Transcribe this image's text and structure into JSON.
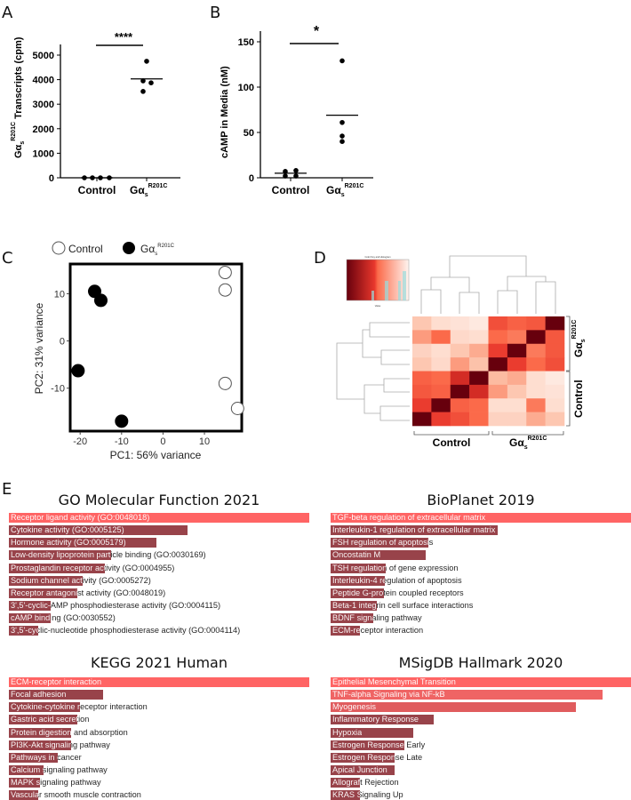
{
  "panel_labels": {
    "a": "A",
    "b": "B",
    "c": "C",
    "d": "D",
    "e": "E"
  },
  "chart_data": [
    {
      "id": "A",
      "type": "scatter",
      "ylabel_main": "Gα",
      "ylabel_sub": "s",
      "ylabel_sup": "R201C",
      "ylabel_rest": " Transcripts (cpm)",
      "yticks": [
        0,
        1000,
        2000,
        3000,
        4000,
        5000
      ],
      "ylim": [
        0,
        5500
      ],
      "categories": [
        "Control",
        "Gα"
      ],
      "cat2_sub": "s",
      "cat2_sup": "R201C",
      "series": [
        {
          "name": "Control",
          "values": [
            0,
            0,
            0,
            0
          ],
          "mean": 0
        },
        {
          "name": "GαsR201C",
          "values": [
            4750,
            3950,
            3870,
            3520
          ],
          "mean": 4030
        }
      ],
      "significance": "****"
    },
    {
      "id": "B",
      "type": "scatter",
      "ylabel": "cAMP in Media (nM)",
      "yticks": [
        0,
        50,
        100,
        150
      ],
      "ylim": [
        0,
        150
      ],
      "categories": [
        "Control",
        "Gα"
      ],
      "cat2_sub": "s",
      "cat2_sup": "R201C",
      "series": [
        {
          "name": "Control",
          "values": [
            7,
            8,
            2,
            2
          ],
          "mean": 5
        },
        {
          "name": "GαsR201C",
          "values": [
            129,
            61,
            46,
            40
          ],
          "mean": 69
        }
      ],
      "significance": "*"
    },
    {
      "id": "C",
      "type": "scatter",
      "xlabel": "PC1: 56% variance",
      "ylabel": "PC2: 31% variance",
      "xticks": [
        -20,
        -10,
        0,
        10
      ],
      "yticks": [
        -10,
        0,
        10
      ],
      "xlim": [
        -22.4,
        19
      ],
      "ylim": [
        -19.1,
        16.3
      ],
      "legend": {
        "control": "Control",
        "mut_main": "Gα",
        "mut_sub": "s",
        "mut_sup": "R201C",
        "placement": "top"
      },
      "series": [
        {
          "name": "Control",
          "filled": false,
          "points": [
            [
              15,
              14.5
            ],
            [
              15,
              10.8
            ],
            [
              15,
              -9
            ],
            [
              18,
              -14.3
            ]
          ]
        },
        {
          "name": "GαsR201C",
          "filled": true,
          "points": [
            [
              -16.5,
              10.5
            ],
            [
              -15,
              8.6
            ],
            [
              -20.5,
              -6.3
            ],
            [
              -10,
              -17
            ]
          ]
        }
      ]
    },
    {
      "id": "D",
      "type": "heatmap",
      "color_key_title": "Color Key and Histogram",
      "color_key_xlabel": "Value",
      "col_groups": [
        "Control",
        "Gα"
      ],
      "group_sub": "s",
      "group_sup": "R201C",
      "row_groups": [
        "Gα",
        "Control"
      ],
      "values": [
        [
          0.2,
          0.1,
          0.08,
          0.05,
          0.65,
          0.55,
          0.6,
          1
        ],
        [
          0.35,
          0.5,
          0.12,
          0.1,
          0.5,
          0.45,
          1,
          0.6
        ],
        [
          0.15,
          0.1,
          0.2,
          0.3,
          0.75,
          1,
          0.45,
          0.6
        ],
        [
          0.2,
          0.12,
          0.35,
          0.22,
          1,
          0.75,
          0.5,
          0.65
        ],
        [
          0.55,
          0.5,
          0.8,
          1,
          0.25,
          0.3,
          0.1,
          0.05
        ],
        [
          0.6,
          0.55,
          1,
          0.8,
          0.35,
          0.2,
          0.1,
          0.08
        ],
        [
          0.75,
          1,
          0.55,
          0.5,
          0.1,
          0.1,
          0.45,
          0.1
        ],
        [
          1,
          0.75,
          0.65,
          0.5,
          0.15,
          0.15,
          0.3,
          0.2
        ]
      ]
    },
    {
      "id": "E1",
      "type": "bar",
      "title": "GO Molecular Function 2021",
      "categories": [
        "Receptor ligand activity (GO:0048018)",
        "Cytokine activity (GO:0005125)",
        "Hormone activity (GO:0005179)",
        "Low-density lipoprotein particle binding (GO:0030169)",
        "Prostaglandin receptor activity (GO:0004955)",
        "Sodium channel activity (GO:0005272)",
        "Receptor antagonist activity (GO:0048019)",
        "3',5'-cyclic-AMP phosphodiesterase activity (GO:0004115)",
        "cAMP binding (GO:0030552)",
        "3',5'-cyclic-nucleotide phosphodiesterase activity (GO:0004114)"
      ],
      "values": [
        1,
        0.595,
        0.49,
        0.34,
        0.32,
        0.246,
        0.228,
        0.14,
        0.14,
        0.098
      ]
    },
    {
      "id": "E2",
      "type": "bar",
      "title": "BioPlanet 2019",
      "categories": [
        "TGF-beta regulation of extracellular matrix",
        "Interleukin-1 regulation of extracellular matrix",
        "FSH regulation of apoptosis",
        "Oncostatin M",
        "TSH regulation of gene expression",
        "Interleukin-4 regulation of apoptosis",
        "Peptide G-protein coupled receptors",
        "Beta-1 integrin cell surface interactions",
        "BDNF signaling pathway",
        "ECM-receptor interaction"
      ],
      "values": [
        1,
        0.556,
        0.325,
        0.316,
        0.183,
        0.18,
        0.178,
        0.154,
        0.142,
        0.098
      ]
    },
    {
      "id": "E3",
      "type": "bar",
      "title": "KEGG 2021 Human",
      "categories": [
        "ECM-receptor interaction",
        "Focal adhesion",
        "Cytokine-cytokine receptor interaction",
        "Gastric acid secretion",
        "Protein digestion and absorption",
        "PI3K-Akt signaling pathway",
        "Pathways in cancer",
        "Calcium signaling pathway",
        "MAPK signaling pathway",
        "Vascular smooth muscle contraction"
      ],
      "values": [
        1,
        0.314,
        0.237,
        0.228,
        0.207,
        0.207,
        0.163,
        0.115,
        0.104,
        0.098
      ]
    },
    {
      "id": "E4",
      "type": "bar",
      "title": "MSigDB Hallmark 2020",
      "categories": [
        "Epithelial Mesenchymal Transition",
        "TNF-alpha Signaling via NF-kB",
        "Myogenesis",
        "Inflammatory Response",
        "Hypoxia",
        "Estrogen Response Early",
        "Estrogen Response Late",
        "Apical Junction",
        "Allograft Rejection",
        "KRAS Signaling Up"
      ],
      "values": [
        1,
        0.905,
        0.817,
        0.343,
        0.275,
        0.246,
        0.213,
        0.213,
        0.098,
        0.098
      ]
    }
  ],
  "colors": {
    "top_bar": "#ff6464",
    "bar": "#98434a",
    "heat_low": "#fff5f0",
    "heat_high": "#67000d"
  }
}
